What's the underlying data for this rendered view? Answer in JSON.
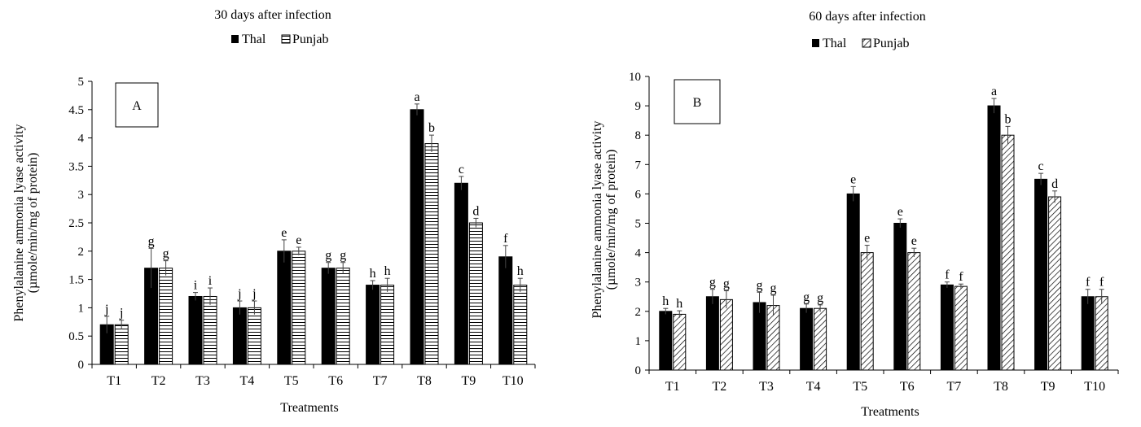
{
  "chart_data": [
    {
      "type": "bar",
      "title": "30 days after infection",
      "panel_label": "A",
      "xlabel": "Treatments",
      "ylabel": [
        "Phenylalanine ammonia lyase activity",
        "(µmole/min/mg of protein)"
      ],
      "categories": [
        "T1",
        "T2",
        "T3",
        "T4",
        "T5",
        "T6",
        "T7",
        "T8",
        "T9",
        "T10"
      ],
      "ylim": [
        0,
        5
      ],
      "yticks": [
        "0",
        "0.5",
        "1",
        "1.5",
        "2",
        "2.5",
        "3",
        "3.5",
        "4",
        "4.5",
        "5"
      ],
      "grid": false,
      "legend_position": "top-center",
      "series": [
        {
          "name": "Thal",
          "pattern": "solid-black",
          "values": [
            0.7,
            1.7,
            1.2,
            1.0,
            2.0,
            1.7,
            1.4,
            4.5,
            3.2,
            1.9
          ],
          "errors": [
            0.15,
            0.35,
            0.07,
            0.12,
            0.2,
            0.1,
            0.08,
            0.1,
            0.12,
            0.2
          ],
          "letters": [
            "j",
            "g",
            "i",
            "j",
            "e",
            "g",
            "h",
            "a",
            "c",
            "f"
          ]
        },
        {
          "name": "Punjab",
          "pattern": "horizontal-lines",
          "values": [
            0.7,
            1.7,
            1.2,
            1.0,
            2.0,
            1.7,
            1.4,
            3.9,
            2.5,
            1.4
          ],
          "errors": [
            0.08,
            0.13,
            0.15,
            0.12,
            0.07,
            0.1,
            0.12,
            0.15,
            0.08,
            0.12
          ],
          "letters": [
            "j",
            "g",
            "i",
            "j",
            "e",
            "g",
            "h",
            "b",
            "d",
            "h"
          ]
        }
      ]
    },
    {
      "type": "bar",
      "title": "60 days after infection",
      "panel_label": "B",
      "xlabel": "Treatments",
      "ylabel": [
        "Phenylalanine ammonia lyase activity",
        "(µmole/min/mg of protein)"
      ],
      "categories": [
        "T1",
        "T2",
        "T3",
        "T4",
        "T5",
        "T6",
        "T7",
        "T8",
        "T9",
        "T10"
      ],
      "ylim": [
        0,
        10
      ],
      "yticks": [
        "0",
        "1",
        "2",
        "3",
        "4",
        "5",
        "6",
        "7",
        "8",
        "9",
        "10"
      ],
      "grid": false,
      "legend_position": "top-center",
      "series": [
        {
          "name": "Thal",
          "pattern": "solid-black",
          "values": [
            2.0,
            2.5,
            2.3,
            2.1,
            6.0,
            5.0,
            2.9,
            9.0,
            6.5,
            2.5
          ],
          "errors": [
            0.1,
            0.25,
            0.35,
            0.15,
            0.25,
            0.15,
            0.1,
            0.25,
            0.2,
            0.25
          ],
          "letters": [
            "h",
            "g",
            "g",
            "g",
            "e",
            "e",
            "f",
            "a",
            "c",
            "f"
          ]
        },
        {
          "name": "Punjab",
          "pattern": "diagonal-hatch",
          "values": [
            1.9,
            2.4,
            2.2,
            2.1,
            4.0,
            4.0,
            2.85,
            8.0,
            5.9,
            2.5
          ],
          "errors": [
            0.12,
            0.3,
            0.35,
            0.12,
            0.25,
            0.15,
            0.08,
            0.3,
            0.2,
            0.25
          ],
          "letters": [
            "h",
            "g",
            "g",
            "g",
            "e",
            "e",
            "f",
            "b",
            "d",
            "f"
          ]
        }
      ]
    }
  ]
}
